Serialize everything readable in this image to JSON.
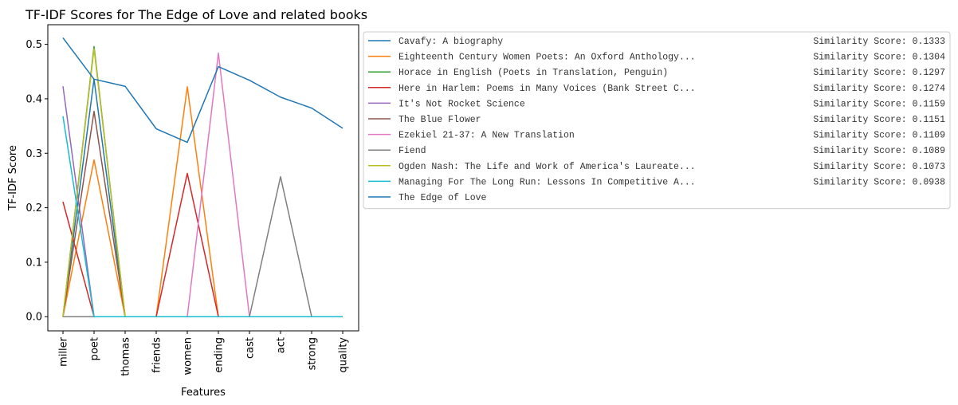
{
  "chart_data": {
    "type": "line",
    "title": "TF-IDF Scores for The Edge of Love and related books",
    "xlabel": "Features",
    "ylabel": "TF-IDF Score",
    "categories": [
      "miller",
      "poet",
      "thomas",
      "friends",
      "women",
      "ending",
      "cast",
      "act",
      "strong",
      "quality"
    ],
    "ylim": [
      -0.026,
      0.536
    ],
    "yticks": [
      0.0,
      0.1,
      0.2,
      0.3,
      0.4,
      0.5
    ],
    "ytick_labels": [
      "0.0",
      "0.1",
      "0.2",
      "0.3",
      "0.4",
      "0.5"
    ],
    "grid": false,
    "legend_placement": "outside-right",
    "series": [
      {
        "name": "Cavafy: A biography",
        "score": "Similarity Score: 0.1333",
        "color": "#1f77b4",
        "values": [
          0,
          0.436,
          0,
          0,
          0,
          0,
          0,
          0,
          0,
          0
        ]
      },
      {
        "name": "Eighteenth Century Women Poets: An Oxford Anthology...",
        "score": "Similarity Score: 0.1304",
        "color": "#ff7f0e",
        "values": [
          0,
          0.288,
          0,
          0,
          0.422,
          0,
          0,
          0,
          0,
          0
        ]
      },
      {
        "name": "Horace in English (Poets in Translation, Penguin)",
        "score": "Similarity Score: 0.1297",
        "color": "#2ca02c",
        "values": [
          0,
          0.496,
          0,
          0,
          0,
          0,
          0,
          0,
          0,
          0
        ]
      },
      {
        "name": "Here in Harlem: Poems in Many Voices (Bank Street C...",
        "score": "Similarity Score: 0.1274",
        "color": "#d62728",
        "values": [
          0.211,
          0,
          0,
          0,
          0.263,
          0,
          0,
          0,
          0,
          0
        ]
      },
      {
        "name": "It's Not Rocket Science",
        "score": "Similarity Score: 0.1159",
        "color": "#9467bd",
        "values": [
          0.423,
          0,
          0,
          0,
          0,
          0,
          0,
          0,
          0,
          0
        ]
      },
      {
        "name": "The Blue Flower",
        "score": "Similarity Score: 0.1151",
        "color": "#8c564b",
        "values": [
          0,
          0.377,
          0,
          0,
          0,
          0,
          0,
          0,
          0,
          0
        ]
      },
      {
        "name": "Ezekiel 21-37: A New Translation",
        "score": "Similarity Score: 0.1109",
        "color": "#e377c2",
        "values": [
          0,
          0,
          0,
          0,
          0,
          0.484,
          0,
          0,
          0,
          0
        ]
      },
      {
        "name": "Fiend",
        "score": "Similarity Score: 0.1089",
        "color": "#7f7f7f",
        "values": [
          0,
          0,
          0,
          0,
          0,
          0,
          0,
          0.257,
          0,
          0
        ]
      },
      {
        "name": "Ogden Nash: The Life and Work of America's Laureate...",
        "score": "Similarity Score: 0.1073",
        "color": "#bcbd22",
        "values": [
          0,
          0.492,
          0,
          0,
          0,
          0,
          0,
          0,
          0,
          0
        ]
      },
      {
        "name": "Managing For The Long Run: Lessons In Competitive A...",
        "score": "Similarity Score: 0.0938",
        "color": "#17becf",
        "values": [
          0.368,
          0,
          0,
          0,
          0,
          0,
          0,
          0,
          0,
          0
        ]
      },
      {
        "name": "The Edge of Love",
        "score": "",
        "color": "#1f77b4",
        "values": [
          0.512,
          0.436,
          0.423,
          0.345,
          0.32,
          0.459,
          0.434,
          0.403,
          0.383,
          0.346
        ]
      }
    ]
  }
}
